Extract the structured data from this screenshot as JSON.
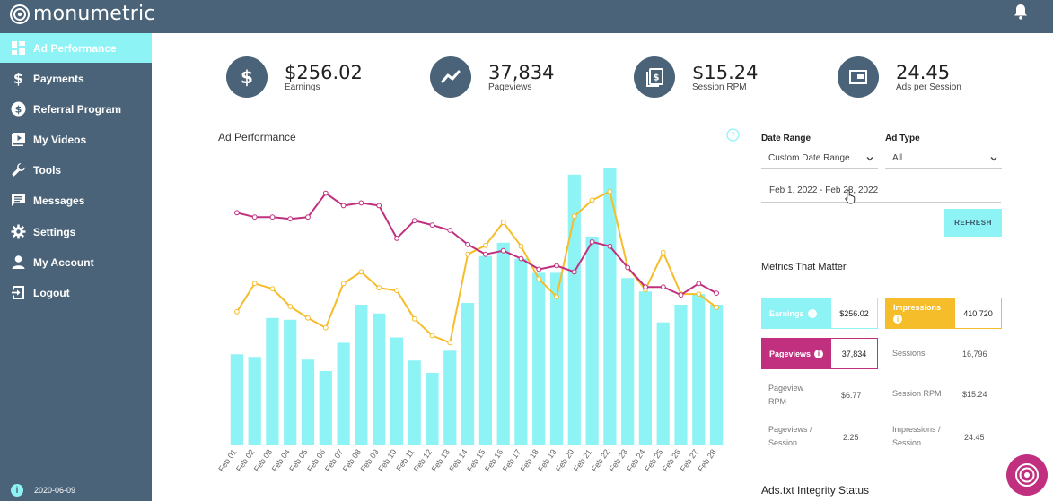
{
  "brand": {
    "name": "monumetric"
  },
  "sidebar": {
    "items": [
      {
        "label": "Ad Performance",
        "icon": "dashboard-icon",
        "active": true
      },
      {
        "label": "Payments",
        "icon": "dollar-icon"
      },
      {
        "label": "Referral Program",
        "icon": "dollar-circle-icon"
      },
      {
        "label": "My Videos",
        "icon": "video-icon"
      },
      {
        "label": "Tools",
        "icon": "wrench-icon"
      },
      {
        "label": "Messages",
        "icon": "message-icon"
      },
      {
        "label": "Settings",
        "icon": "gear-icon"
      },
      {
        "label": "My Account",
        "icon": "person-icon"
      },
      {
        "label": "Logout",
        "icon": "logout-icon"
      }
    ],
    "version": "2020-06-09"
  },
  "kpis": [
    {
      "value": "$256.02",
      "label": "Earnings",
      "icon": "dollar-icon"
    },
    {
      "value": "37,834",
      "label": "Pageviews",
      "icon": "trend-icon"
    },
    {
      "value": "$15.24",
      "label": "Session RPM",
      "icon": "cash-stack-icon"
    },
    {
      "value": "24.45",
      "label": "Ads per Session",
      "icon": "ad-window-icon"
    }
  ],
  "chart": {
    "title": "Ad Performance"
  },
  "filters": {
    "date_range_label": "Date Range",
    "date_range_value": "Custom Date Range",
    "ad_type_label": "Ad Type",
    "ad_type_value": "All",
    "date_input": "Feb 1, 2022 - Feb 28, 2022",
    "refresh_label": "REFRESH"
  },
  "metrics": {
    "title": "Metrics That Matter",
    "earnings": {
      "name": "Earnings",
      "value": "$256.02"
    },
    "impressions": {
      "name": "Impressions",
      "value": "410,720"
    },
    "pageviews": {
      "name": "Pageviews",
      "value": "37,834"
    },
    "sessions": {
      "name": "Sessions",
      "value": "16,796"
    },
    "pageview_rpm": {
      "name1": "Pageview",
      "name2": "RPM",
      "value": "$6.77"
    },
    "session_rpm": {
      "name": "Session RPM",
      "value": "$15.24"
    },
    "pageviews_session": {
      "name1": "Pageviews /",
      "name2": "Session",
      "value": "2.25"
    },
    "impressions_session": {
      "name1": "Impressions /",
      "name2": "Session",
      "value": "24.45"
    }
  },
  "ads_txt_title": "Ads.txt Integrity Status",
  "colors": {
    "sidebar": "#4a6378",
    "accent_cyan": "#8ef3f5",
    "impressions_yellow": "#f6bd2a",
    "pageviews_magenta": "#c0307f"
  },
  "chart_data": {
    "type": "bar",
    "categories": [
      "Feb 01",
      "Feb 02",
      "Feb 03",
      "Feb 04",
      "Feb 05",
      "Feb 06",
      "Feb 07",
      "Feb 08",
      "Feb 09",
      "Feb 10",
      "Feb 11",
      "Feb 12",
      "Feb 13",
      "Feb 14",
      "Feb 15",
      "Feb 16",
      "Feb 17",
      "Feb 18",
      "Feb 19",
      "Feb 20",
      "Feb 21",
      "Feb 22",
      "Feb 23",
      "Feb 24",
      "Feb 25",
      "Feb 26",
      "Feb 27",
      "Feb 28"
    ],
    "series": [
      {
        "type": "bar",
        "color": "#8ef3f5",
        "values": [
          102,
          99,
          143,
          141,
          96,
          83,
          115,
          158,
          148,
          121,
          95,
          81,
          106,
          160,
          213,
          228,
          210,
          194,
          194,
          305,
          235,
          312,
          188,
          173,
          138,
          158,
          170,
          158
        ]
      },
      {
        "type": "line",
        "color": "#f6bd2a",
        "values": [
          150,
          182,
          176,
          156,
          143,
          132,
          182,
          195,
          177,
          174,
          142,
          123,
          115,
          215,
          225,
          251,
          224,
          187,
          167,
          258,
          276,
          286,
          200,
          175,
          217,
          170,
          170,
          155
        ]
      },
      {
        "type": "line",
        "color": "#c0307f",
        "values": [
          262,
          257,
          257,
          255,
          257,
          284,
          270,
          273,
          270,
          233,
          253,
          248,
          242,
          226,
          215,
          219,
          210,
          198,
          202,
          195,
          229,
          224,
          200,
          178,
          178,
          169,
          182,
          171
        ]
      }
    ],
    "ylim": [
      0,
      320
    ],
    "grid": false,
    "legend": "none"
  }
}
